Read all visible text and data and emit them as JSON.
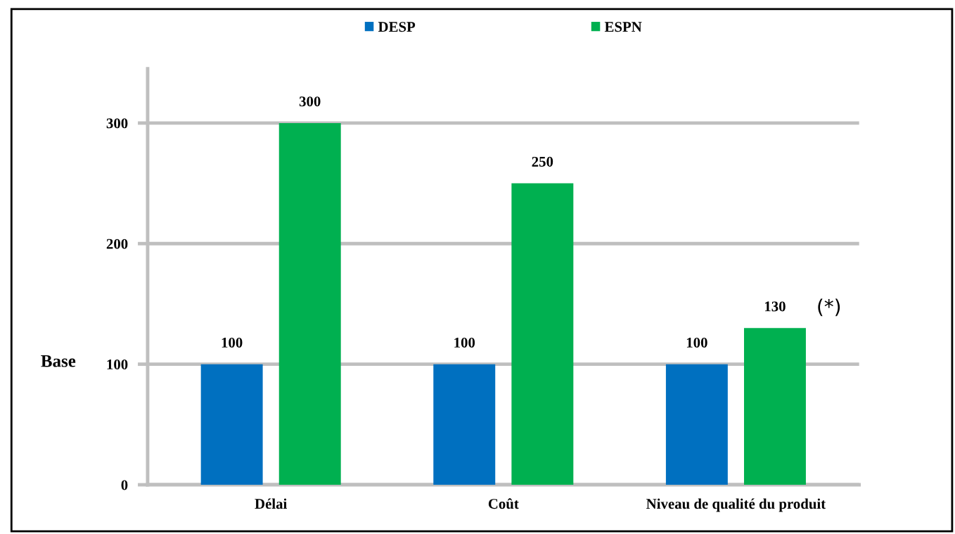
{
  "chart_data": {
    "type": "bar",
    "categories": [
      "Délai",
      "Coût",
      "Niveau de qualité du produit"
    ],
    "series": [
      {
        "name": "DESP",
        "color": "#0070c0",
        "values": [
          100,
          100,
          100
        ]
      },
      {
        "name": "ESPN",
        "color": "#00b050",
        "values": [
          300,
          250,
          130
        ]
      }
    ],
    "ylim": [
      0,
      345
    ],
    "yticks": [
      0,
      100,
      200,
      300
    ],
    "grid": "y",
    "legend": "top",
    "data_labels": true,
    "annotations": [
      "Base",
      "(*)"
    ]
  }
}
